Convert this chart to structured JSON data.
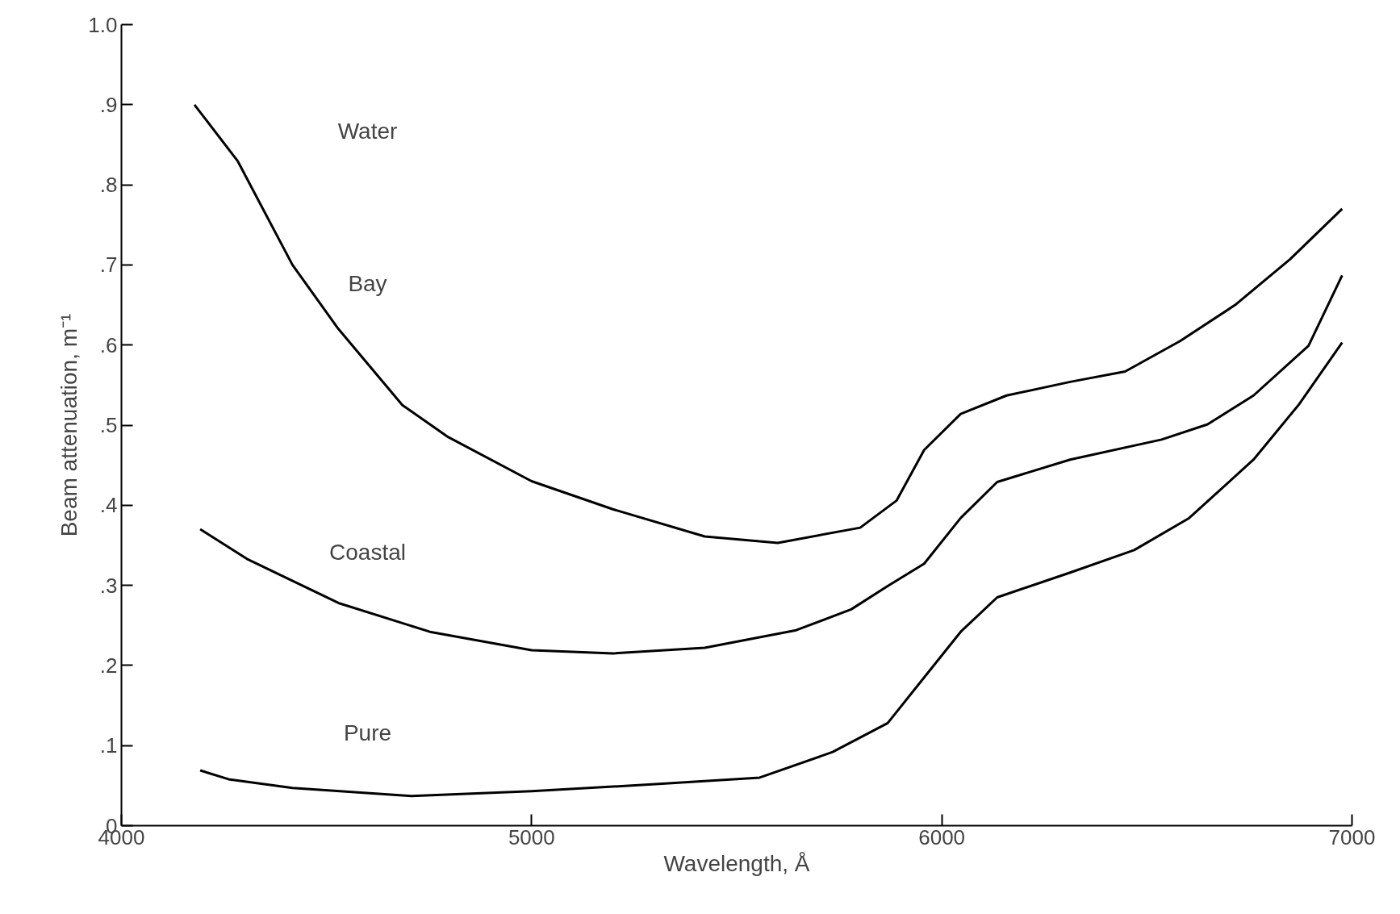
{
  "chart_data": {
    "type": "line",
    "xlabel": "Wavelength, Å",
    "ylabel": "Beam attenuation, m⁻¹",
    "xlim": [
      4000,
      7000
    ],
    "ylim": [
      0,
      1.0
    ],
    "xticks": [
      4000,
      5000,
      6000,
      7000
    ],
    "yticks": [
      {
        "value": 0,
        "label": "0"
      },
      {
        "value": 0.1,
        "label": ".1"
      },
      {
        "value": 0.2,
        "label": ".2"
      },
      {
        "value": 0.3,
        "label": ".3"
      },
      {
        "value": 0.4,
        "label": ".4"
      },
      {
        "value": 0.5,
        "label": ".5"
      },
      {
        "value": 0.6,
        "label": ".6"
      },
      {
        "value": 0.7,
        "label": ".7"
      },
      {
        "value": 0.8,
        "label": ".8"
      },
      {
        "value": 0.9,
        "label": ".9"
      },
      {
        "value": 1.0,
        "label": "1.0"
      }
    ],
    "grid": false,
    "marker": "none",
    "line_style": "solid",
    "series": [
      {
        "name": "Bay",
        "color": "#000000",
        "x": [
          4178,
          4283,
          4417,
          4529,
          4685,
          4797,
          5000,
          5198,
          5422,
          5600,
          5801,
          5890,
          5957,
          6046,
          6158,
          6313,
          6447,
          6581,
          6715,
          6849,
          6976
        ],
        "values": [
          0.9,
          0.83,
          0.7,
          0.62,
          0.525,
          0.485,
          0.43,
          0.395,
          0.361,
          0.353,
          0.372,
          0.406,
          0.469,
          0.514,
          0.537,
          0.554,
          0.567,
          0.605,
          0.65,
          0.707,
          0.77
        ]
      },
      {
        "name": "Coastal",
        "color": "#000000",
        "x": [
          4192,
          4306,
          4529,
          4752,
          5000,
          5198,
          5422,
          5645,
          5779,
          5868,
          5957,
          6046,
          6135,
          6313,
          6536,
          6648,
          6760,
          6894,
          6976
        ],
        "values": [
          0.37,
          0.333,
          0.278,
          0.242,
          0.219,
          0.215,
          0.222,
          0.244,
          0.27,
          0.299,
          0.327,
          0.384,
          0.429,
          0.457,
          0.482,
          0.501,
          0.537,
          0.599,
          0.687
        ]
      },
      {
        "name": "Pure",
        "color": "#000000",
        "x": [
          4192,
          4261,
          4417,
          4707,
          5000,
          5310,
          5556,
          5734,
          5868,
          5957,
          6046,
          6135,
          6313,
          6469,
          6603,
          6760,
          6871,
          6976
        ],
        "values": [
          0.069,
          0.058,
          0.047,
          0.037,
          0.043,
          0.052,
          0.06,
          0.092,
          0.128,
          0.185,
          0.242,
          0.285,
          0.316,
          0.344,
          0.384,
          0.457,
          0.526,
          0.603
        ]
      }
    ],
    "annotations": [
      "Water"
    ]
  }
}
